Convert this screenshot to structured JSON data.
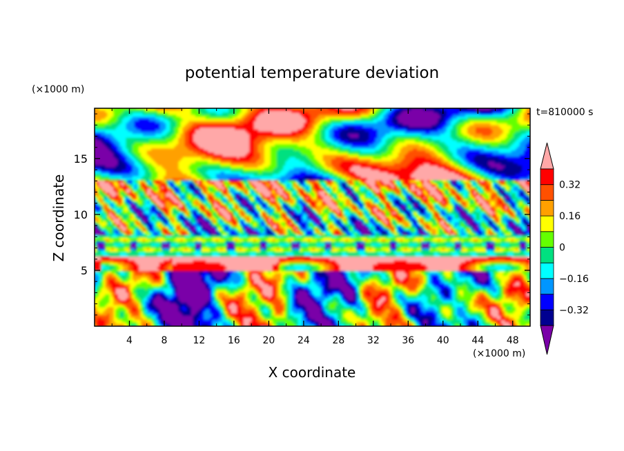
{
  "chart_data": {
    "type": "heatmap",
    "title": "potential temperature deviation",
    "xlabel": "X coordinate",
    "ylabel": "Z coordinate",
    "x_unit": "(×1000 m)",
    "y_unit": "(×1000 m)",
    "time_label": "t=810000 s",
    "xlim": [
      0,
      50
    ],
    "ylim": [
      0,
      19.5
    ],
    "x_ticks": [
      4,
      8,
      12,
      16,
      20,
      24,
      28,
      32,
      36,
      40,
      44,
      48
    ],
    "x_tick_labels": [
      "4",
      "8",
      "12",
      "16",
      "20",
      "24",
      "28",
      "32",
      "36",
      "40",
      "44",
      "48"
    ],
    "y_ticks": [
      5,
      10,
      15
    ],
    "y_tick_labels": [
      "5",
      "10",
      "15"
    ],
    "colorbar": {
      "levels": [
        -0.4,
        -0.32,
        -0.24,
        -0.16,
        -0.08,
        0,
        0.08,
        0.16,
        0.24,
        0.32,
        0.4
      ],
      "colors": [
        "#7a00a8",
        "#000090",
        "#0000ff",
        "#0096ff",
        "#00ffff",
        "#00e080",
        "#64ff00",
        "#ffff00",
        "#ffa000",
        "#ff5000",
        "#ff0000",
        "#ffa8a8"
      ],
      "tick_values": [
        -0.32,
        -0.16,
        0,
        0.16,
        0.32
      ],
      "tick_labels": [
        "−0.32",
        "−0.16",
        "0",
        "0.16",
        "0.32"
      ],
      "extend": "both"
    }
  }
}
